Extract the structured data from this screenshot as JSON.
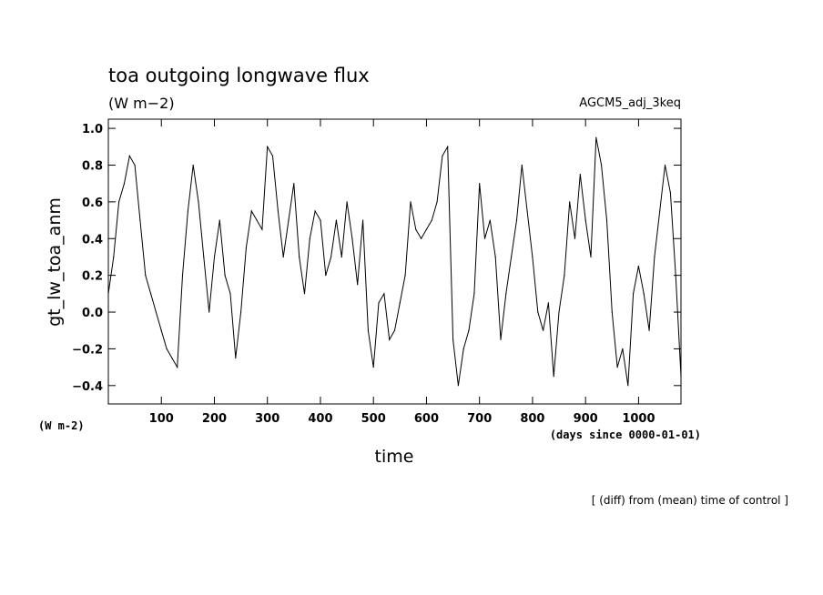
{
  "chart_data": {
    "type": "line",
    "title": "toa outgoing longwave flux",
    "title_units": "(W m−2)",
    "run_label": "AGCM5_adj_3keq",
    "ylabel": "gt_lw_toa_anm",
    "y_units": "(W m-2)",
    "xlabel": "time",
    "x_units": "(days since 0000-01-01)",
    "footnote": "[ (diff) from (mean) time of control ]",
    "xlim": [
      0,
      1080
    ],
    "ylim": [
      -0.5,
      1.05
    ],
    "x_ticks": [
      100,
      200,
      300,
      400,
      500,
      600,
      700,
      800,
      900,
      1000
    ],
    "y_ticks": [
      -0.4,
      -0.2,
      0.0,
      0.2,
      0.4,
      0.6,
      0.8,
      1.0
    ],
    "y_tick_labels": [
      "−0.4",
      "−0.2",
      "0.0",
      "0.2",
      "0.4",
      "0.6",
      "0.8",
      "1.0"
    ],
    "grid": false,
    "series": [
      {
        "color": "#000000",
        "x": [
          0,
          10,
          20,
          30,
          40,
          50,
          60,
          70,
          80,
          90,
          100,
          110,
          120,
          130,
          140,
          150,
          160,
          170,
          180,
          190,
          200,
          210,
          220,
          230,
          240,
          250,
          260,
          270,
          280,
          290,
          300,
          310,
          320,
          330,
          340,
          350,
          360,
          370,
          380,
          390,
          400,
          410,
          420,
          430,
          440,
          450,
          460,
          470,
          480,
          490,
          500,
          510,
          520,
          530,
          540,
          550,
          560,
          570,
          580,
          590,
          600,
          610,
          620,
          630,
          640,
          650,
          660,
          670,
          680,
          690,
          700,
          710,
          720,
          730,
          740,
          750,
          760,
          770,
          780,
          790,
          800,
          810,
          820,
          830,
          840,
          850,
          860,
          870,
          880,
          890,
          900,
          910,
          920,
          930,
          940,
          950,
          960,
          970,
          980,
          990,
          1000,
          1010,
          1020,
          1030,
          1040,
          1050,
          1060,
          1070,
          1080
        ],
        "y": [
          0.1,
          0.3,
          0.6,
          0.7,
          0.85,
          0.8,
          0.5,
          0.2,
          0.1,
          0.0,
          -0.1,
          -0.2,
          -0.25,
          -0.3,
          0.2,
          0.55,
          0.8,
          0.6,
          0.3,
          0.0,
          0.3,
          0.5,
          0.2,
          0.1,
          -0.25,
          0.0,
          0.35,
          0.55,
          0.5,
          0.45,
          0.9,
          0.85,
          0.55,
          0.3,
          0.5,
          0.7,
          0.3,
          0.1,
          0.4,
          0.55,
          0.5,
          0.2,
          0.3,
          0.5,
          0.3,
          0.6,
          0.4,
          0.15,
          0.5,
          -0.1,
          -0.3,
          0.05,
          0.1,
          -0.15,
          -0.1,
          0.05,
          0.2,
          0.6,
          0.45,
          0.4,
          0.45,
          0.5,
          0.6,
          0.85,
          0.9,
          -0.15,
          -0.4,
          -0.2,
          -0.1,
          0.1,
          0.7,
          0.4,
          0.5,
          0.3,
          -0.15,
          0.1,
          0.3,
          0.5,
          0.8,
          0.55,
          0.3,
          0.0,
          -0.1,
          0.05,
          -0.35,
          0.0,
          0.2,
          0.6,
          0.4,
          0.75,
          0.5,
          0.3,
          0.95,
          0.8,
          0.5,
          0.0,
          -0.3,
          -0.2,
          -0.4,
          0.1,
          0.25,
          0.1,
          -0.1,
          0.3,
          0.55,
          0.8,
          0.65,
          0.2,
          -0.35
        ]
      }
    ]
  }
}
